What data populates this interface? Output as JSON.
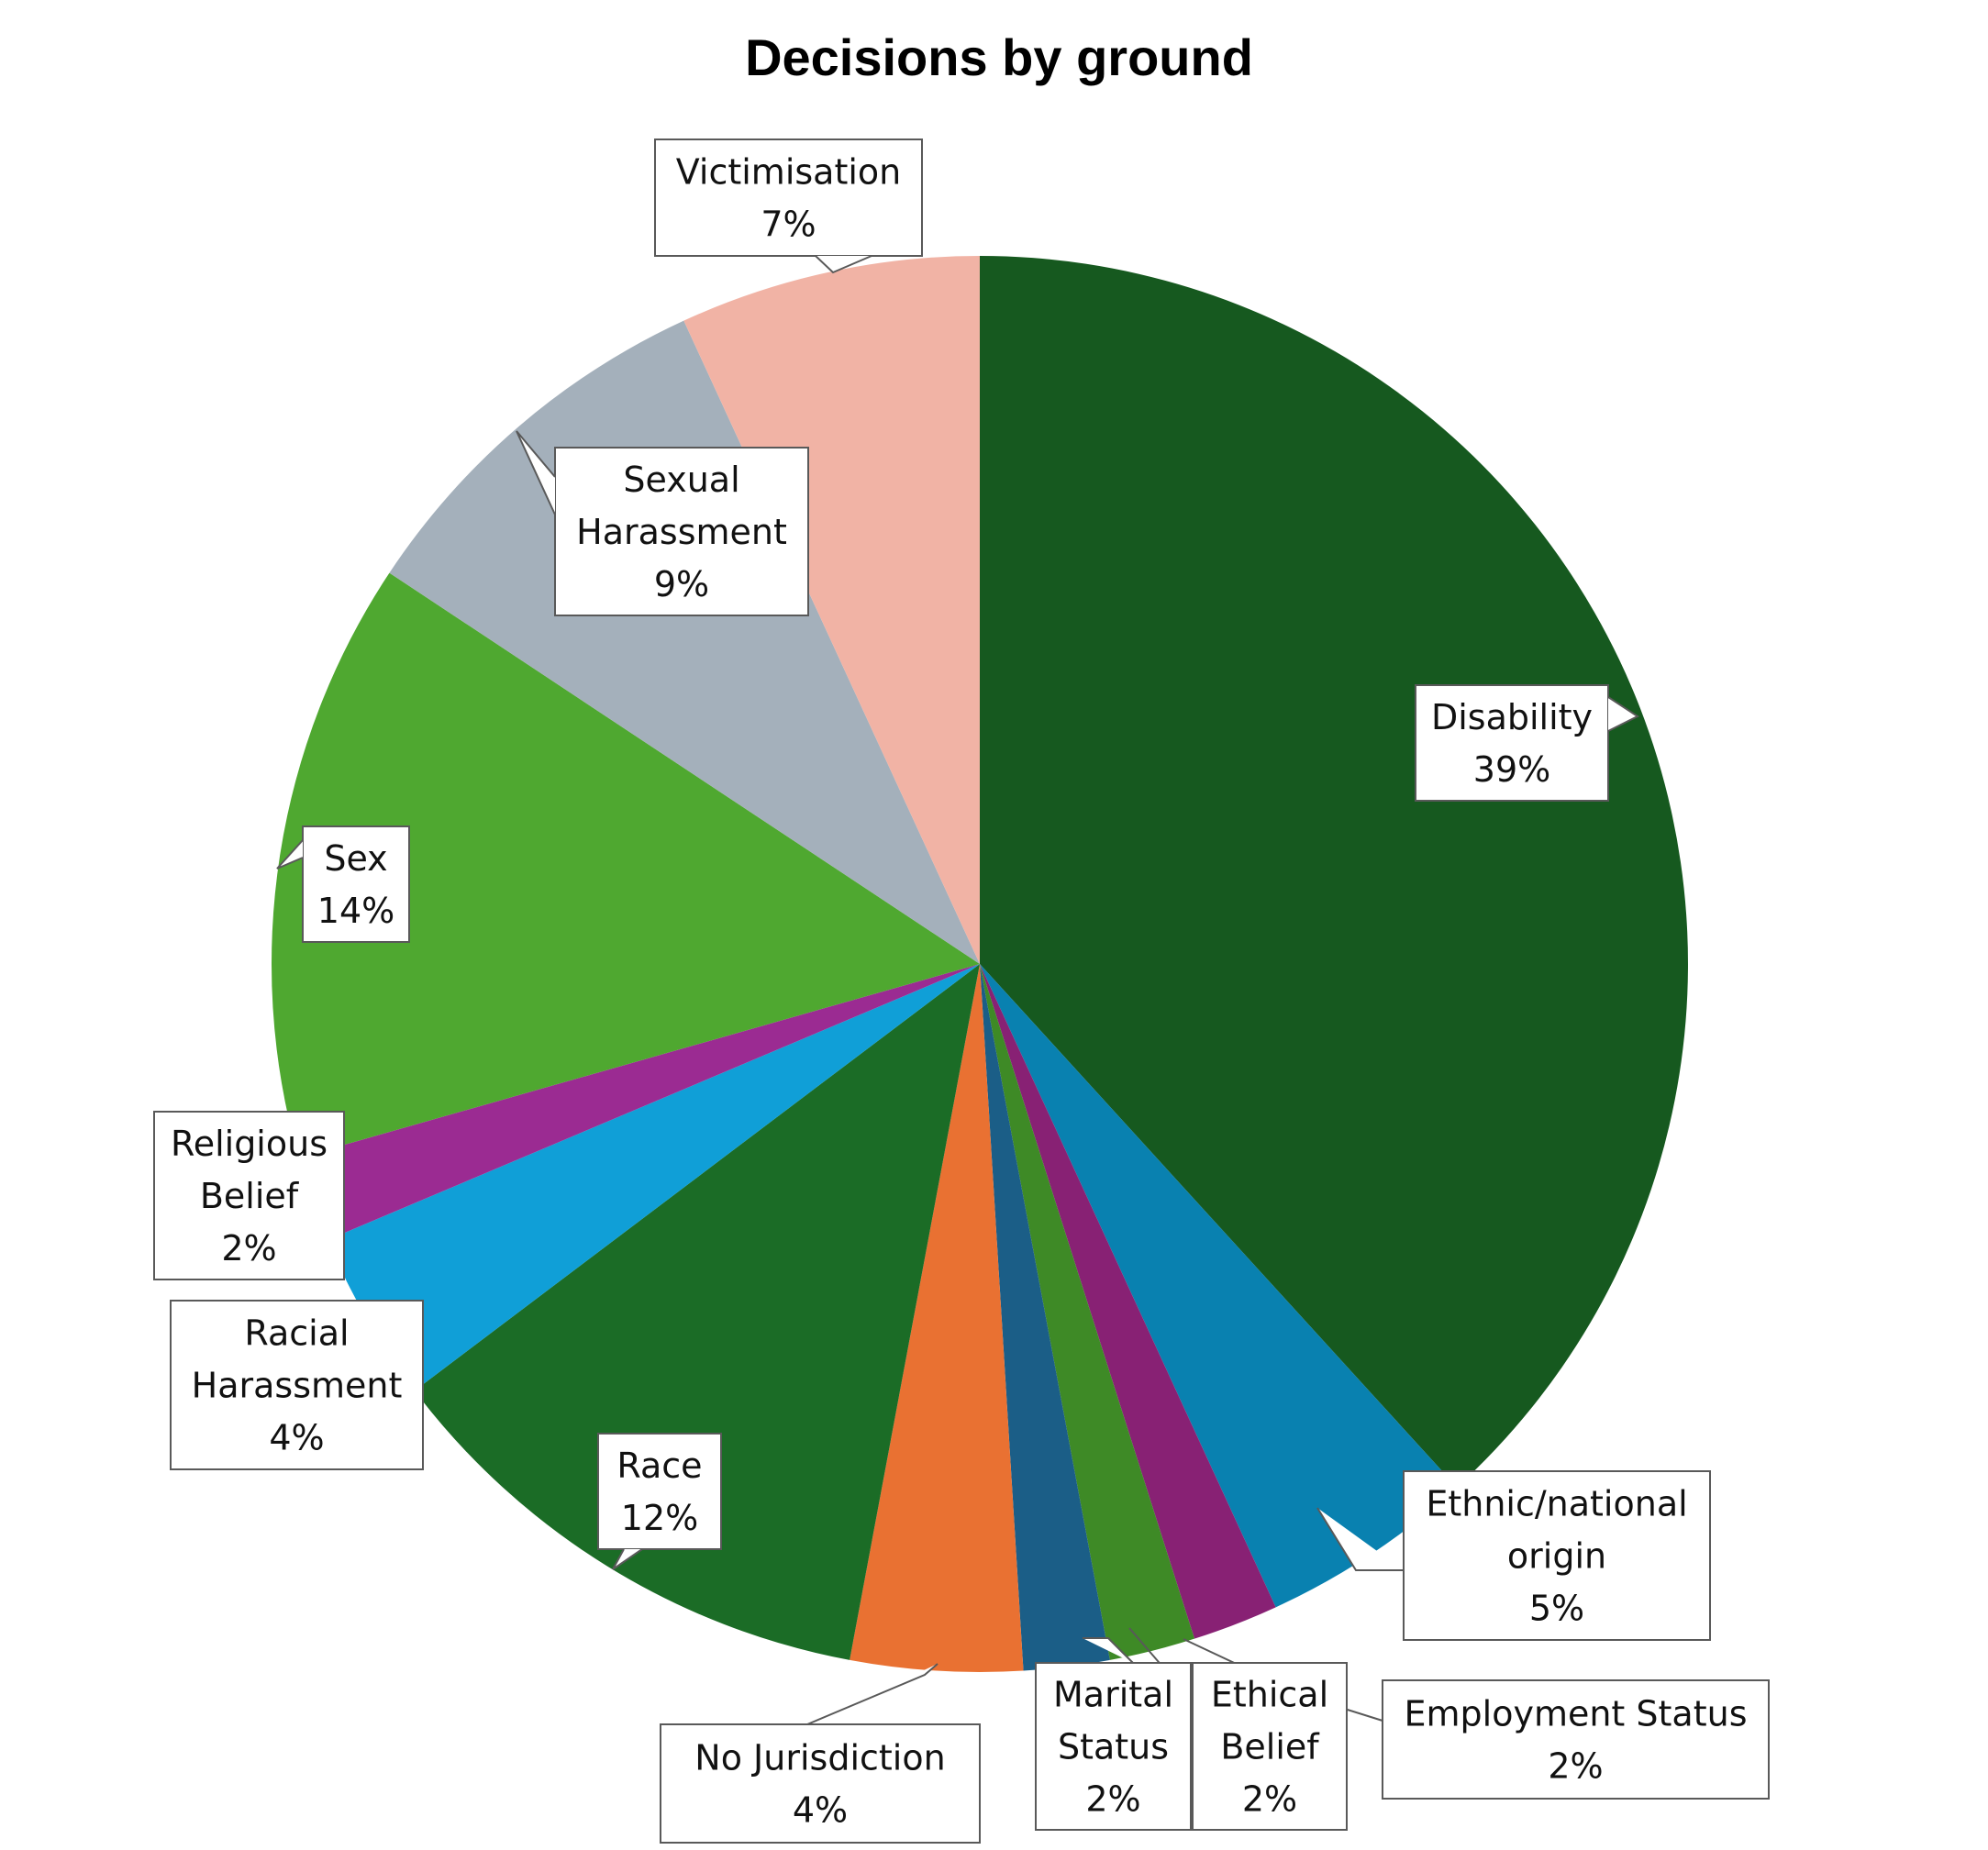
{
  "chart_data": {
    "type": "pie",
    "title": "Decisions by ground",
    "start_angle_deg": 0,
    "direction": "clockwise",
    "legend": "none",
    "slices": [
      {
        "label": "Disability",
        "value": 39,
        "display": "39%",
        "color": "#16591f"
      },
      {
        "label": "Ethnic/national origin",
        "value": 5,
        "display": "5%",
        "color": "#0981b0"
      },
      {
        "label": "Employment Status",
        "value": 2,
        "display": "2%",
        "color": "#882174"
      },
      {
        "label": "Ethical Belief",
        "value": 2,
        "display": "2%",
        "color": "#3e8a26"
      },
      {
        "label": "Marital Status",
        "value": 2,
        "display": "2%",
        "color": "#1b5e87"
      },
      {
        "label": "No Jurisdiction",
        "value": 4,
        "display": "4%",
        "color": "#e97132"
      },
      {
        "label": "Race",
        "value": 12,
        "display": "12%",
        "color": "#1b6c26"
      },
      {
        "label": "Racial Harassment",
        "value": 4,
        "display": "4%",
        "color": "#109fd7"
      },
      {
        "label": "Religious Belief",
        "value": 2,
        "display": "2%",
        "color": "#9b2b92"
      },
      {
        "label": "Sex",
        "value": 14,
        "display": "14%",
        "color": "#4fa830"
      },
      {
        "label": "Sexual Harassment",
        "value": 9,
        "display": "9%",
        "color": "#a4b0bb"
      },
      {
        "label": "Victimisation",
        "value": 7,
        "display": "7%",
        "color": "#f1b3a5"
      }
    ],
    "data_labels": [
      {
        "lines": [
          "Disability",
          "39%"
        ]
      },
      {
        "lines": [
          "Ethnic/national",
          "origin",
          "5%"
        ]
      },
      {
        "lines": [
          "Employment Status",
          "2%"
        ]
      },
      {
        "lines": [
          "Ethical",
          "Belief",
          "2%"
        ]
      },
      {
        "lines": [
          "Marital",
          "Status",
          "2%"
        ]
      },
      {
        "lines": [
          "No Jurisdiction",
          "4%"
        ]
      },
      {
        "lines": [
          "Race",
          "12%"
        ]
      },
      {
        "lines": [
          "Racial",
          "Harassment",
          "4%"
        ]
      },
      {
        "lines": [
          "Religious",
          "Belief",
          "2%"
        ]
      },
      {
        "lines": [
          "Sex",
          "14%"
        ]
      },
      {
        "lines": [
          "Sexual",
          "Harassment",
          "9%"
        ]
      },
      {
        "lines": [
          "Victimisation",
          "7%"
        ]
      }
    ]
  }
}
